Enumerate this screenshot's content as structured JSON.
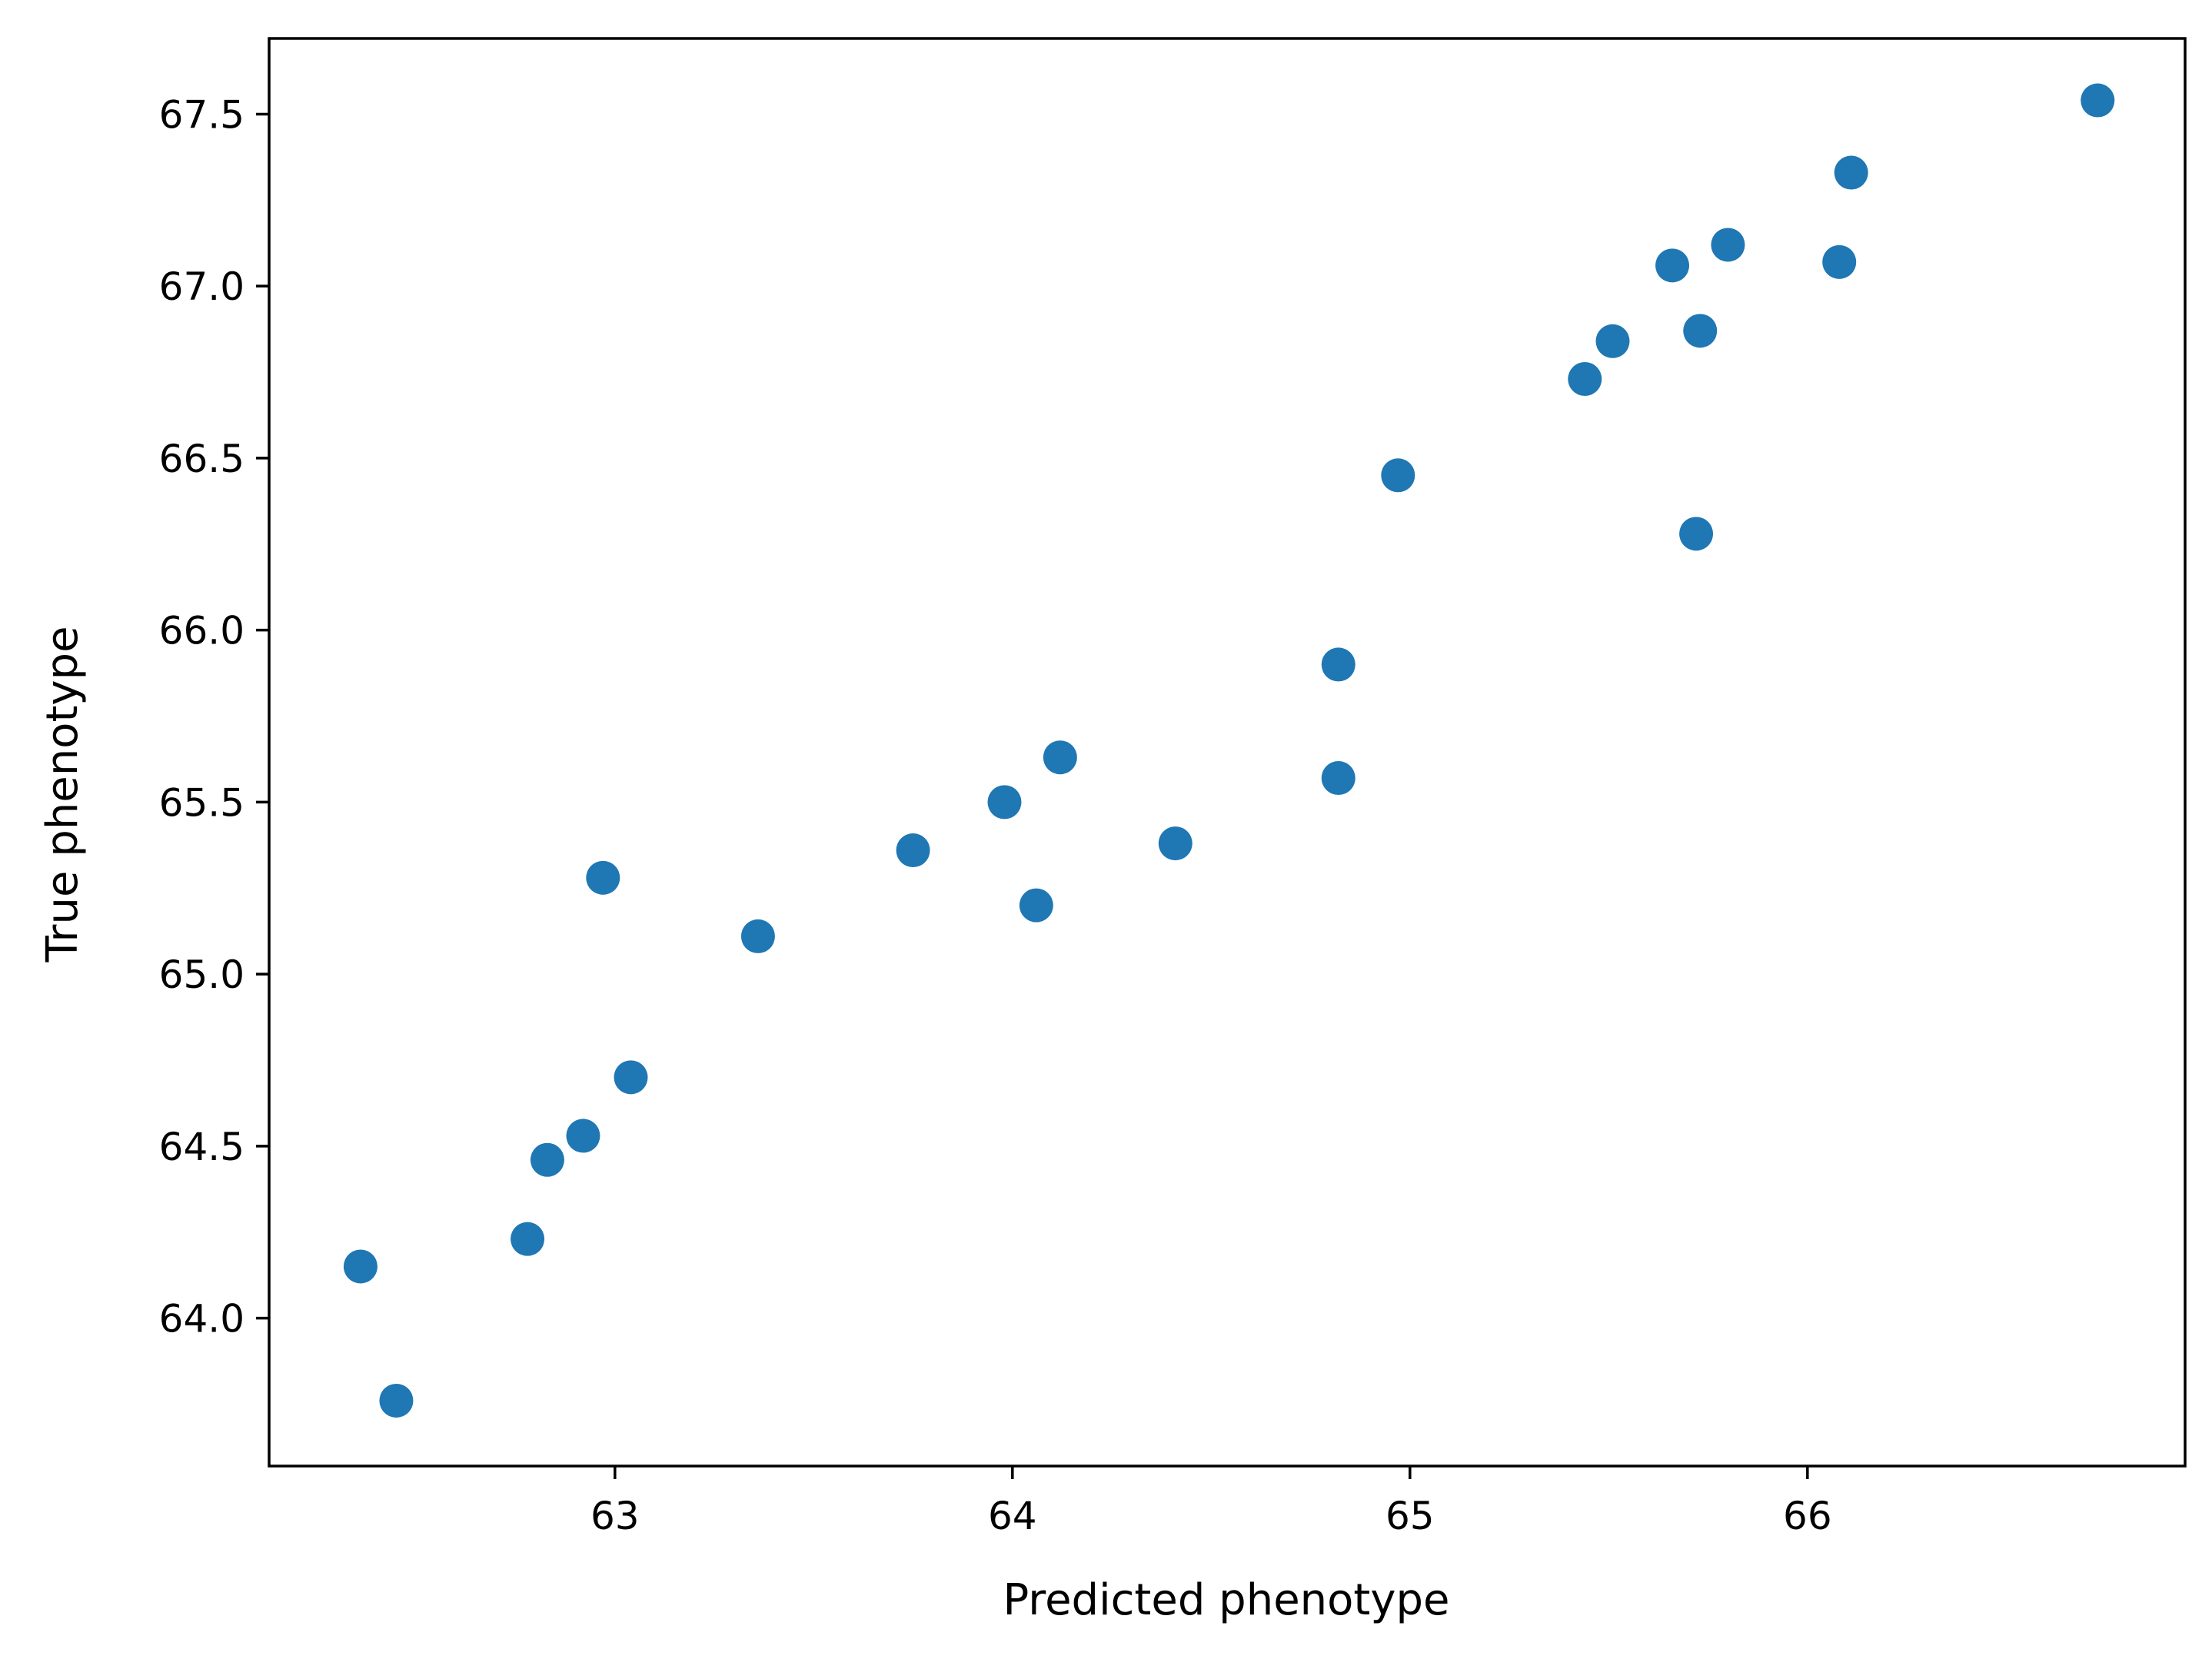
{
  "chart_data": {
    "type": "scatter",
    "title": "",
    "xlabel": "Predicted phenotype",
    "ylabel": "True phenotype",
    "xlim": [
      62.13,
      66.95
    ],
    "ylim": [
      63.57,
      67.72
    ],
    "x_ticks": [
      63,
      64,
      65,
      66
    ],
    "y_ticks": [
      64.0,
      64.5,
      65.0,
      65.5,
      66.0,
      66.5,
      67.0,
      67.5
    ],
    "grid": false,
    "legend": "none",
    "marker_color": "#1f77b4",
    "series": [
      {
        "points": [
          {
            "x": 62.36,
            "y": 64.15
          },
          {
            "x": 62.45,
            "y": 63.76
          },
          {
            "x": 62.78,
            "y": 64.23
          },
          {
            "x": 62.83,
            "y": 64.46
          },
          {
            "x": 62.92,
            "y": 64.53
          },
          {
            "x": 63.04,
            "y": 64.7
          },
          {
            "x": 62.97,
            "y": 65.28
          },
          {
            "x": 63.36,
            "y": 65.11
          },
          {
            "x": 63.75,
            "y": 65.36
          },
          {
            "x": 63.98,
            "y": 65.5
          },
          {
            "x": 64.06,
            "y": 65.2
          },
          {
            "x": 64.12,
            "y": 65.63
          },
          {
            "x": 64.41,
            "y": 65.38
          },
          {
            "x": 64.82,
            "y": 65.57
          },
          {
            "x": 64.82,
            "y": 65.9
          },
          {
            "x": 64.97,
            "y": 66.45
          },
          {
            "x": 65.44,
            "y": 66.73
          },
          {
            "x": 65.51,
            "y": 66.84
          },
          {
            "x": 65.66,
            "y": 67.06
          },
          {
            "x": 65.72,
            "y": 66.28
          },
          {
            "x": 65.73,
            "y": 66.87
          },
          {
            "x": 65.8,
            "y": 67.12
          },
          {
            "x": 66.08,
            "y": 67.07
          },
          {
            "x": 66.11,
            "y": 67.33
          },
          {
            "x": 66.73,
            "y": 67.54
          }
        ]
      }
    ]
  }
}
